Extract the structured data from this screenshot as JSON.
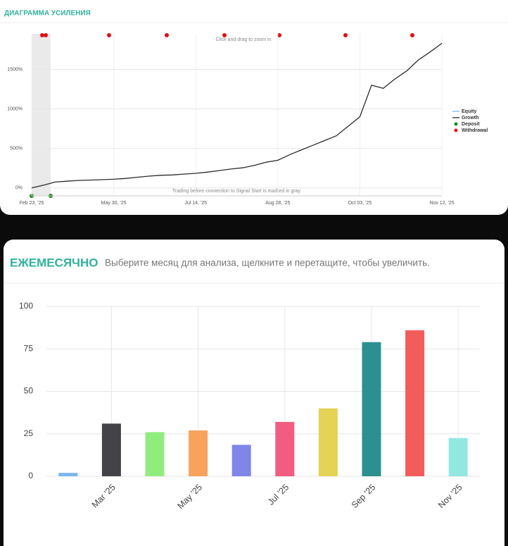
{
  "chart_data": [
    {
      "type": "line",
      "title": "ДИАГРАММА УСИЛЕНИЯ",
      "annotations": [
        "Click and drag to zoom in",
        "Trading before connection to Signal Start is marked in gray"
      ],
      "categories": [
        "Feb 23, '25",
        null,
        null,
        null,
        null,
        null,
        null,
        "May 30, '25",
        null,
        null,
        null,
        null,
        null,
        null,
        "Jul 14, '25",
        null,
        null,
        null,
        null,
        null,
        null,
        "Aug 28, '25",
        null,
        null,
        null,
        null,
        null,
        null,
        "Oct 03, '25",
        null,
        null,
        null,
        null,
        null,
        null,
        "Nov 12, '25"
      ],
      "series": [
        {
          "name": "Equity",
          "color": "#7cb5ec",
          "values": [
            null,
            null,
            null,
            null,
            null,
            null,
            null,
            null,
            null,
            null,
            null,
            null,
            null,
            null,
            null,
            null,
            null,
            null,
            null,
            null,
            null,
            null,
            null,
            null,
            null,
            null,
            null,
            null,
            null,
            null,
            null,
            null,
            null,
            null,
            null,
            null
          ]
        },
        {
          "name": "Growth",
          "color": "#2b2b2b",
          "values": [
            0,
            35,
            75,
            85,
            95,
            100,
            105,
            110,
            120,
            135,
            150,
            160,
            165,
            175,
            185,
            200,
            220,
            240,
            255,
            285,
            325,
            350,
            420,
            480,
            540,
            600,
            660,
            780,
            900,
            1300,
            1260,
            1380,
            1480,
            1620,
            1720,
            1830
          ]
        }
      ],
      "markers": [
        {
          "name": "Deposit",
          "color": "#1e8a1e"
        },
        {
          "name": "Withdrawal",
          "color": "#e01010"
        }
      ],
      "ylim": [
        -100,
        1950
      ],
      "yticks": [
        {
          "value": 0,
          "label": "0%"
        },
        {
          "value": 500,
          "label": "500%"
        },
        {
          "value": 1000,
          "label": "1000%"
        },
        {
          "value": 1500,
          "label": "1500%"
        }
      ],
      "grid": true
    },
    {
      "type": "bar",
      "title": "ЕЖЕМЕСЯЧНО",
      "subtitle": "Выберите месяц для анализа, щелкните и перетащите, чтобы увеличить.",
      "categories": [
        null,
        "Mar '25",
        null,
        "May '25",
        null,
        "Jul '25",
        null,
        "Sep '25",
        null,
        "Nov '25"
      ],
      "values": [
        2,
        31,
        26,
        27,
        18.5,
        32,
        40,
        79,
        86,
        22.5
      ],
      "colors": [
        "#7cb5ec",
        "#434348",
        "#90ed7d",
        "#f7a35c",
        "#8085e9",
        "#f15c80",
        "#e4d354",
        "#2b908f",
        "#f45b5b",
        "#91e8e1"
      ],
      "ylim": [
        0,
        100
      ],
      "yticks": [
        0,
        25,
        50,
        75,
        100
      ],
      "grid": true
    }
  ]
}
